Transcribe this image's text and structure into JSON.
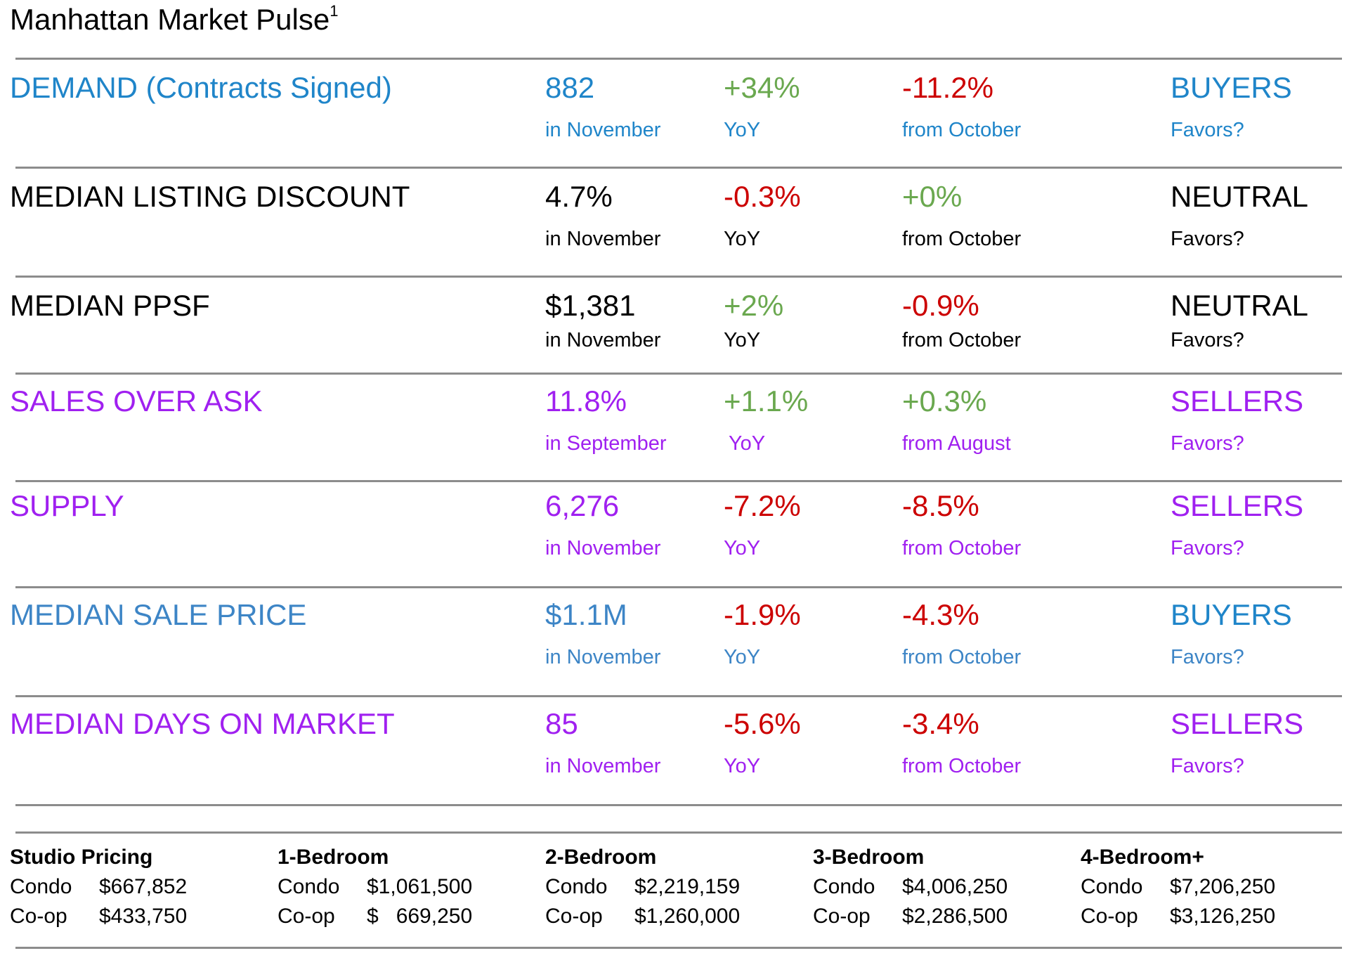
{
  "title": {
    "text": "Manhattan Market Pulse",
    "footnote": "1"
  },
  "colors": {
    "green": "#6aa84f",
    "red": "#cc0000",
    "demand_blue": "#1f85c9",
    "price_blue": "#3d85c6",
    "purple": "#a020f0",
    "black": "#000000",
    "rule": "#8c8c8c"
  },
  "metrics": [
    {
      "label": "DEMAND (Contracts Signed)",
      "value": "882",
      "value_period": "in November",
      "yoy": "+34%",
      "yoy_label": "YoY",
      "mom": "-11.2%",
      "mom_label": "from October",
      "favors": "BUYERS",
      "favors_label": "Favors?",
      "text_color": "#1f85c9",
      "yoy_color": "#6aa84f",
      "mom_color": "#cc0000",
      "favors_color": "#1f85c9"
    },
    {
      "label": "MEDIAN LISTING DISCOUNT",
      "value": "4.7%",
      "value_period": "in November",
      "yoy": "-0.3%",
      "yoy_label": "YoY",
      "mom": "+0%",
      "mom_label": "from October",
      "favors": "NEUTRAL",
      "favors_label": "Favors?",
      "text_color": "#000000",
      "yoy_color": "#cc0000",
      "mom_color": "#6aa84f",
      "favors_color": "#000000"
    },
    {
      "label": "MEDIAN PPSF",
      "value": "$1,381",
      "value_period": "in November",
      "yoy": "+2%",
      "yoy_label": "YoY",
      "mom": "-0.9%",
      "mom_label": "from October",
      "favors": "NEUTRAL",
      "favors_label": "Favors?",
      "text_color": "#000000",
      "yoy_color": "#6aa84f",
      "mom_color": "#cc0000",
      "favors_color": "#000000"
    },
    {
      "label": "SALES OVER ASK",
      "value": "11.8%",
      "value_period": "in September",
      "yoy": "+1.1%",
      "yoy_label": "YoY",
      "mom": "+0.3%",
      "mom_label": "from August",
      "favors": "SELLERS",
      "favors_label": "Favors?",
      "text_color": "#a020f0",
      "yoy_color": "#6aa84f",
      "mom_color": "#6aa84f",
      "favors_color": "#a020f0"
    },
    {
      "label": "SUPPLY",
      "value": "6,276",
      "value_period": "in November",
      "yoy": "-7.2%",
      "yoy_label": "YoY",
      "mom": "-8.5%",
      "mom_label": "from October",
      "favors": "SELLERS",
      "favors_label": "Favors?",
      "text_color": "#a020f0",
      "yoy_color": "#cc0000",
      "mom_color": "#cc0000",
      "favors_color": "#a020f0"
    },
    {
      "label": "MEDIAN SALE PRICE",
      "value": "$1.1M",
      "value_period": "in November",
      "yoy": "-1.9%",
      "yoy_label": "YoY",
      "mom": "-4.3%",
      "mom_label": "from October",
      "favors": "BUYERS",
      "favors_label": "Favors?",
      "text_color": "#3d85c6",
      "yoy_color": "#cc0000",
      "mom_color": "#cc0000",
      "favors_color": "#1f85c9"
    },
    {
      "label": "MEDIAN DAYS ON MARKET",
      "value": "85",
      "value_period": "in November",
      "yoy": "-5.6%",
      "yoy_label": "YoY",
      "mom": "-3.4%",
      "mom_label": "from October",
      "favors": "SELLERS",
      "favors_label": "Favors?",
      "text_color": "#a020f0",
      "yoy_color": "#cc0000",
      "mom_color": "#cc0000",
      "favors_color": "#a020f0"
    }
  ],
  "pricing": [
    {
      "heading": "Studio Pricing",
      "condo_label": "Condo",
      "condo_value": "$667,852",
      "coop_label": "Co-op",
      "coop_value": "$433,750"
    },
    {
      "heading": "1-Bedroom",
      "condo_label": "Condo",
      "condo_value": "$1,061,500",
      "coop_label": "Co-op",
      "coop_value": "$   669,250"
    },
    {
      "heading": "2-Bedroom",
      "condo_label": "Condo",
      "condo_value": "$2,219,159",
      "coop_label": "Co-op",
      "coop_value": "$1,260,000"
    },
    {
      "heading": "3-Bedroom",
      "condo_label": "Condo",
      "condo_value": "$4,006,250",
      "coop_label": "Co-op",
      "coop_value": "$2,286,500"
    },
    {
      "heading": "4-Bedroom+",
      "condo_label": "Condo",
      "condo_value": "$7,206,250",
      "coop_label": "Co-op",
      "coop_value": "$3,126,250"
    }
  ]
}
